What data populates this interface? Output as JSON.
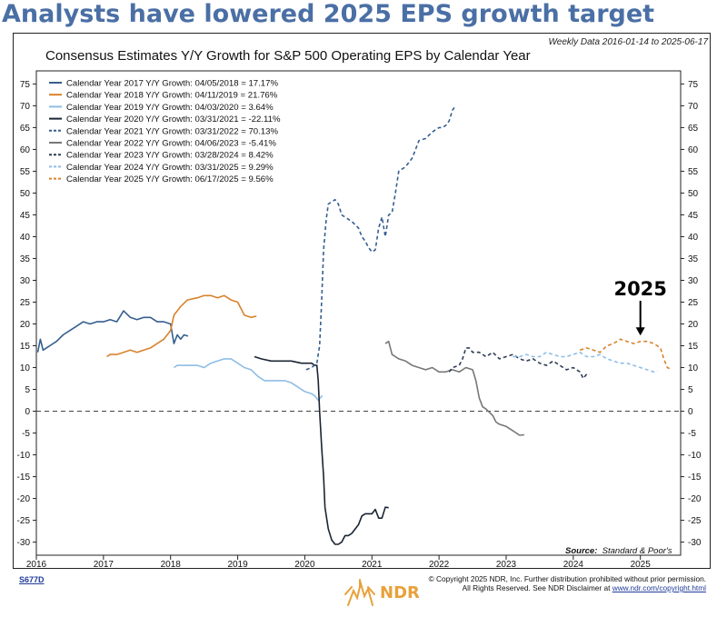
{
  "headline": "Analysts have lowered 2025 EPS growth target",
  "date_range": "Weekly Data 2016-01-14 to 2025-06-17",
  "source_label": "Source:",
  "source_value": "Standard & Poor's",
  "chart_id": "S677D",
  "copyright_line1": "© Copyright 2025 NDR, Inc. Further distribution prohibited without prior permission.",
  "copyright_line2": "All Rights Reserved. See NDR Disclaimer at",
  "copyright_link": "www.ndr.com/copyright.html",
  "logo_text": "NDR",
  "colors": {
    "headline": "#4a6fa5",
    "cy2017": "#355f8f",
    "cy2018": "#d9822b",
    "cy2019": "#8fbde6",
    "cy2020": "#1a2433",
    "cy2021": "#355f8f",
    "cy2022": "#777777",
    "cy2023": "#2f3d55",
    "cy2024": "#8fbde6",
    "cy2025": "#d9822b",
    "logo": "#e8a13a"
  },
  "chart_data": {
    "type": "line",
    "title": "Consensus Estimates Y/Y Growth for S&P 500 Operating EPS by Calendar Year",
    "xlabel": "",
    "ylabel": "",
    "xlim": [
      2016.0,
      2025.6
    ],
    "ylim": [
      -33,
      78
    ],
    "x_ticks": [
      2016,
      2017,
      2018,
      2019,
      2020,
      2021,
      2022,
      2023,
      2024,
      2025
    ],
    "y_ticks": [
      75,
      70,
      65,
      60,
      55,
      50,
      45,
      40,
      35,
      30,
      25,
      20,
      15,
      10,
      5,
      0,
      -5,
      -10,
      -15,
      -20,
      -25,
      -30
    ],
    "reference_line": 0,
    "grid": false,
    "legend_position": "top-left",
    "annotation": {
      "text": "2025",
      "x": 2025.0,
      "y": 16.5
    },
    "series": [
      {
        "name": "Calendar Year 2017 Y/Y Growth: 04/05/2018 = 17.17%",
        "color": "#355f8f",
        "dash": false,
        "x": [
          2016.02,
          2016.06,
          2016.1,
          2016.15,
          2016.2,
          2016.3,
          2016.4,
          2016.5,
          2016.6,
          2016.7,
          2016.8,
          2016.9,
          2017.0,
          2017.1,
          2017.2,
          2017.3,
          2017.4,
          2017.5,
          2017.6,
          2017.7,
          2017.8,
          2017.9,
          2018.0,
          2018.05,
          2018.1,
          2018.15,
          2018.2,
          2018.26
        ],
        "y": [
          13.5,
          16.5,
          14.0,
          14.5,
          15.0,
          16.0,
          17.5,
          18.5,
          19.5,
          20.5,
          20.0,
          20.5,
          20.5,
          21.0,
          20.5,
          23.0,
          21.5,
          21.0,
          21.5,
          21.5,
          20.5,
          20.5,
          20.0,
          15.5,
          17.5,
          16.5,
          17.5,
          17.2
        ]
      },
      {
        "name": "Calendar Year 2018 Y/Y Growth: 04/11/2019 = 21.76%",
        "color": "#d9822b",
        "dash": false,
        "x": [
          2017.05,
          2017.1,
          2017.2,
          2017.3,
          2017.4,
          2017.5,
          2017.6,
          2017.7,
          2017.8,
          2017.9,
          2017.95,
          2018.0,
          2018.05,
          2018.15,
          2018.25,
          2018.4,
          2018.5,
          2018.6,
          2018.7,
          2018.8,
          2018.85,
          2018.9,
          2019.0,
          2019.1,
          2019.2,
          2019.28
        ],
        "y": [
          12.5,
          13.0,
          13.0,
          13.5,
          14.0,
          13.5,
          14.0,
          14.5,
          15.5,
          16.5,
          17.5,
          18.5,
          22.0,
          24.0,
          25.5,
          26.0,
          26.5,
          26.5,
          26.0,
          26.5,
          26.0,
          25.5,
          25.0,
          22.0,
          21.5,
          21.8
        ]
      },
      {
        "name": "Calendar Year 2019 Y/Y Growth: 04/03/2020 = 3.64%",
        "color": "#8fbde6",
        "dash": false,
        "x": [
          2018.05,
          2018.1,
          2018.2,
          2018.3,
          2018.4,
          2018.5,
          2018.6,
          2018.7,
          2018.8,
          2018.9,
          2019.0,
          2019.1,
          2019.2,
          2019.3,
          2019.4,
          2019.5,
          2019.6,
          2019.7,
          2019.8,
          2019.9,
          2020.0,
          2020.1,
          2020.15,
          2020.2,
          2020.26
        ],
        "y": [
          10.0,
          10.5,
          10.5,
          10.5,
          10.5,
          10.0,
          11.0,
          11.5,
          12.0,
          12.0,
          11.0,
          10.0,
          9.5,
          8.0,
          7.0,
          7.0,
          7.0,
          7.0,
          6.5,
          5.5,
          4.5,
          4.0,
          3.5,
          2.5,
          3.6
        ]
      },
      {
        "name": "Calendar Year 2020 Y/Y Growth: 03/31/2021 = -22.11%",
        "color": "#1a2433",
        "dash": false,
        "x": [
          2019.25,
          2019.35,
          2019.5,
          2019.65,
          2019.8,
          2019.95,
          2020.1,
          2020.15,
          2020.18,
          2020.2,
          2020.22,
          2020.25,
          2020.28,
          2020.3,
          2020.35,
          2020.4,
          2020.45,
          2020.5,
          2020.55,
          2020.6,
          2020.65,
          2020.7,
          2020.8,
          2020.85,
          2020.9,
          2021.0,
          2021.05,
          2021.1,
          2021.15,
          2021.2,
          2021.25
        ],
        "y": [
          12.5,
          12.0,
          11.5,
          11.5,
          11.5,
          11.0,
          11.0,
          10.5,
          10.5,
          7.0,
          0.0,
          -8.0,
          -15.0,
          -22.0,
          -27.0,
          -29.5,
          -30.5,
          -30.5,
          -30.0,
          -28.5,
          -28.5,
          -28.0,
          -26.0,
          -24.0,
          -23.5,
          -23.5,
          -22.5,
          -24.5,
          -24.5,
          -22.0,
          -22.1
        ]
      },
      {
        "name": "Calendar Year 2021 Y/Y Growth: 03/31/2022 = 70.13%",
        "color": "#355f8f",
        "dash": true,
        "x": [
          2020.02,
          2020.1,
          2020.18,
          2020.22,
          2020.25,
          2020.28,
          2020.32,
          2020.35,
          2020.4,
          2020.45,
          2020.5,
          2020.55,
          2020.6,
          2020.7,
          2020.8,
          2020.85,
          2020.9,
          2020.95,
          2021.0,
          2021.05,
          2021.1,
          2021.15,
          2021.2,
          2021.25,
          2021.3,
          2021.35,
          2021.4,
          2021.5,
          2021.6,
          2021.7,
          2021.8,
          2021.9,
          2022.0,
          2022.05,
          2022.1,
          2022.15,
          2022.2,
          2022.25
        ],
        "y": [
          9.5,
          10.0,
          11.0,
          15.0,
          25.0,
          37.0,
          44.0,
          47.5,
          48.0,
          48.5,
          47.5,
          45.0,
          44.5,
          43.5,
          42.0,
          40.0,
          39.0,
          37.5,
          36.5,
          37.0,
          42.0,
          44.5,
          40.0,
          45.0,
          45.5,
          50.0,
          55.0,
          56.0,
          58.0,
          62.0,
          62.5,
          64.0,
          65.0,
          65.0,
          65.5,
          66.5,
          69.0,
          70.1
        ]
      },
      {
        "name": "Calendar Year 2022 Y/Y Growth: 04/06/2023 = -5.41%",
        "color": "#777777",
        "dash": false,
        "x": [
          2021.2,
          2021.25,
          2021.3,
          2021.4,
          2021.5,
          2021.6,
          2021.7,
          2021.8,
          2021.9,
          2022.0,
          2022.1,
          2022.2,
          2022.3,
          2022.4,
          2022.5,
          2022.55,
          2022.6,
          2022.65,
          2022.7,
          2022.8,
          2022.85,
          2022.9,
          2023.0,
          2023.1,
          2023.2,
          2023.27
        ],
        "y": [
          15.5,
          16.0,
          13.0,
          12.0,
          11.5,
          10.5,
          10.0,
          9.5,
          10.0,
          9.0,
          9.0,
          9.5,
          9.0,
          10.0,
          9.5,
          7.0,
          3.0,
          1.0,
          0.5,
          -1.0,
          -2.5,
          -3.0,
          -3.5,
          -4.5,
          -5.5,
          -5.4
        ]
      },
      {
        "name": "Calendar Year 2023 Y/Y Growth: 03/28/2024 = 8.42%",
        "color": "#2f3d55",
        "dash": true,
        "x": [
          2022.15,
          2022.2,
          2022.3,
          2022.35,
          2022.4,
          2022.45,
          2022.5,
          2022.6,
          2022.7,
          2022.8,
          2022.9,
          2023.0,
          2023.1,
          2023.2,
          2023.3,
          2023.4,
          2023.5,
          2023.6,
          2023.7,
          2023.8,
          2023.9,
          2024.0,
          2024.1,
          2024.15,
          2024.2,
          2024.24
        ],
        "y": [
          9.0,
          10.0,
          10.5,
          12.0,
          14.5,
          14.5,
          13.5,
          13.5,
          12.5,
          13.5,
          12.0,
          12.5,
          13.0,
          12.0,
          11.5,
          12.0,
          11.0,
          10.5,
          11.5,
          10.5,
          9.5,
          10.0,
          9.0,
          7.5,
          8.5,
          8.4
        ]
      },
      {
        "name": "Calendar Year 2024 Y/Y Growth: 03/31/2025 = 9.29%",
        "color": "#8fbde6",
        "dash": true,
        "x": [
          2023.1,
          2023.2,
          2023.3,
          2023.4,
          2023.5,
          2023.6,
          2023.7,
          2023.8,
          2023.9,
          2024.0,
          2024.1,
          2024.2,
          2024.3,
          2024.4,
          2024.5,
          2024.6,
          2024.7,
          2024.8,
          2024.9,
          2025.0,
          2025.1,
          2025.2,
          2025.25
        ],
        "y": [
          12.5,
          12.5,
          13.0,
          12.5,
          12.5,
          13.5,
          13.0,
          12.5,
          12.5,
          13.0,
          13.5,
          12.5,
          12.5,
          13.0,
          12.0,
          11.5,
          11.0,
          11.0,
          10.5,
          10.0,
          9.5,
          9.0,
          9.3
        ]
      },
      {
        "name": "Calendar Year 2025 Y/Y Growth: 06/17/2025 = 9.56%",
        "color": "#d9822b",
        "dash": true,
        "x": [
          2024.1,
          2024.2,
          2024.3,
          2024.4,
          2024.5,
          2024.6,
          2024.7,
          2024.8,
          2024.9,
          2025.0,
          2025.1,
          2025.2,
          2025.3,
          2025.35,
          2025.4,
          2025.46
        ],
        "y": [
          14.0,
          14.5,
          14.0,
          13.5,
          15.0,
          15.5,
          16.5,
          16.0,
          15.5,
          16.0,
          16.0,
          15.5,
          14.5,
          12.0,
          10.0,
          9.6
        ]
      }
    ]
  }
}
